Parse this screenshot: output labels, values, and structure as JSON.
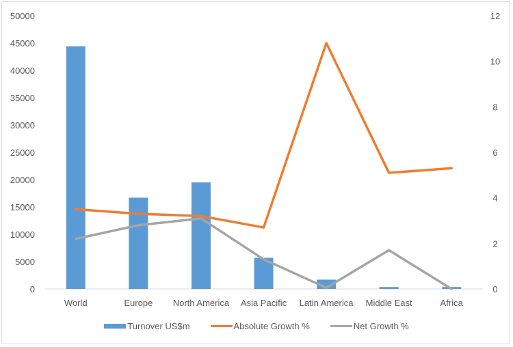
{
  "chart_data": {
    "type": "bar+line",
    "title": "",
    "categories": [
      "World",
      "Europe",
      "North America",
      "Asia Pacific",
      "Latin America",
      "Middle East",
      "Africa"
    ],
    "series": [
      {
        "name": "Turnover US$m",
        "type": "bar",
        "axis": "left",
        "color": "#5b9bd5",
        "values": [
          44400,
          16700,
          19500,
          5700,
          1700,
          350,
          350
        ]
      },
      {
        "name": "Absolute Growth %",
        "type": "line",
        "axis": "right",
        "color": "#ed7d31",
        "values": [
          3.5,
          3.3,
          3.2,
          2.7,
          10.8,
          5.1,
          5.3
        ]
      },
      {
        "name": "Net Growth %",
        "type": "line",
        "axis": "right",
        "color": "#a5a5a5",
        "values": [
          2.2,
          2.8,
          3.1,
          1.3,
          0.05,
          1.7,
          0.0
        ]
      }
    ],
    "left_axis": {
      "ylim": [
        0,
        50000
      ],
      "ticks": [
        "0",
        "5000",
        "10000",
        "15000",
        "20000",
        "25000",
        "30000",
        "35000",
        "40000",
        "45000",
        "50000"
      ]
    },
    "right_axis": {
      "ylim": [
        0,
        12
      ],
      "ticks": [
        "0",
        "2",
        "4",
        "6",
        "8",
        "10",
        "12"
      ]
    },
    "xlabel": "",
    "ylabel": "",
    "grid": false,
    "legend_position": "bottom"
  },
  "legend": {
    "items": [
      {
        "label": "Turnover US$m",
        "color": "#5b9bd5"
      },
      {
        "label": "Absolute Growth %",
        "color": "#ed7d31"
      },
      {
        "label": "Net Growth %",
        "color": "#a5a5a5"
      }
    ]
  }
}
